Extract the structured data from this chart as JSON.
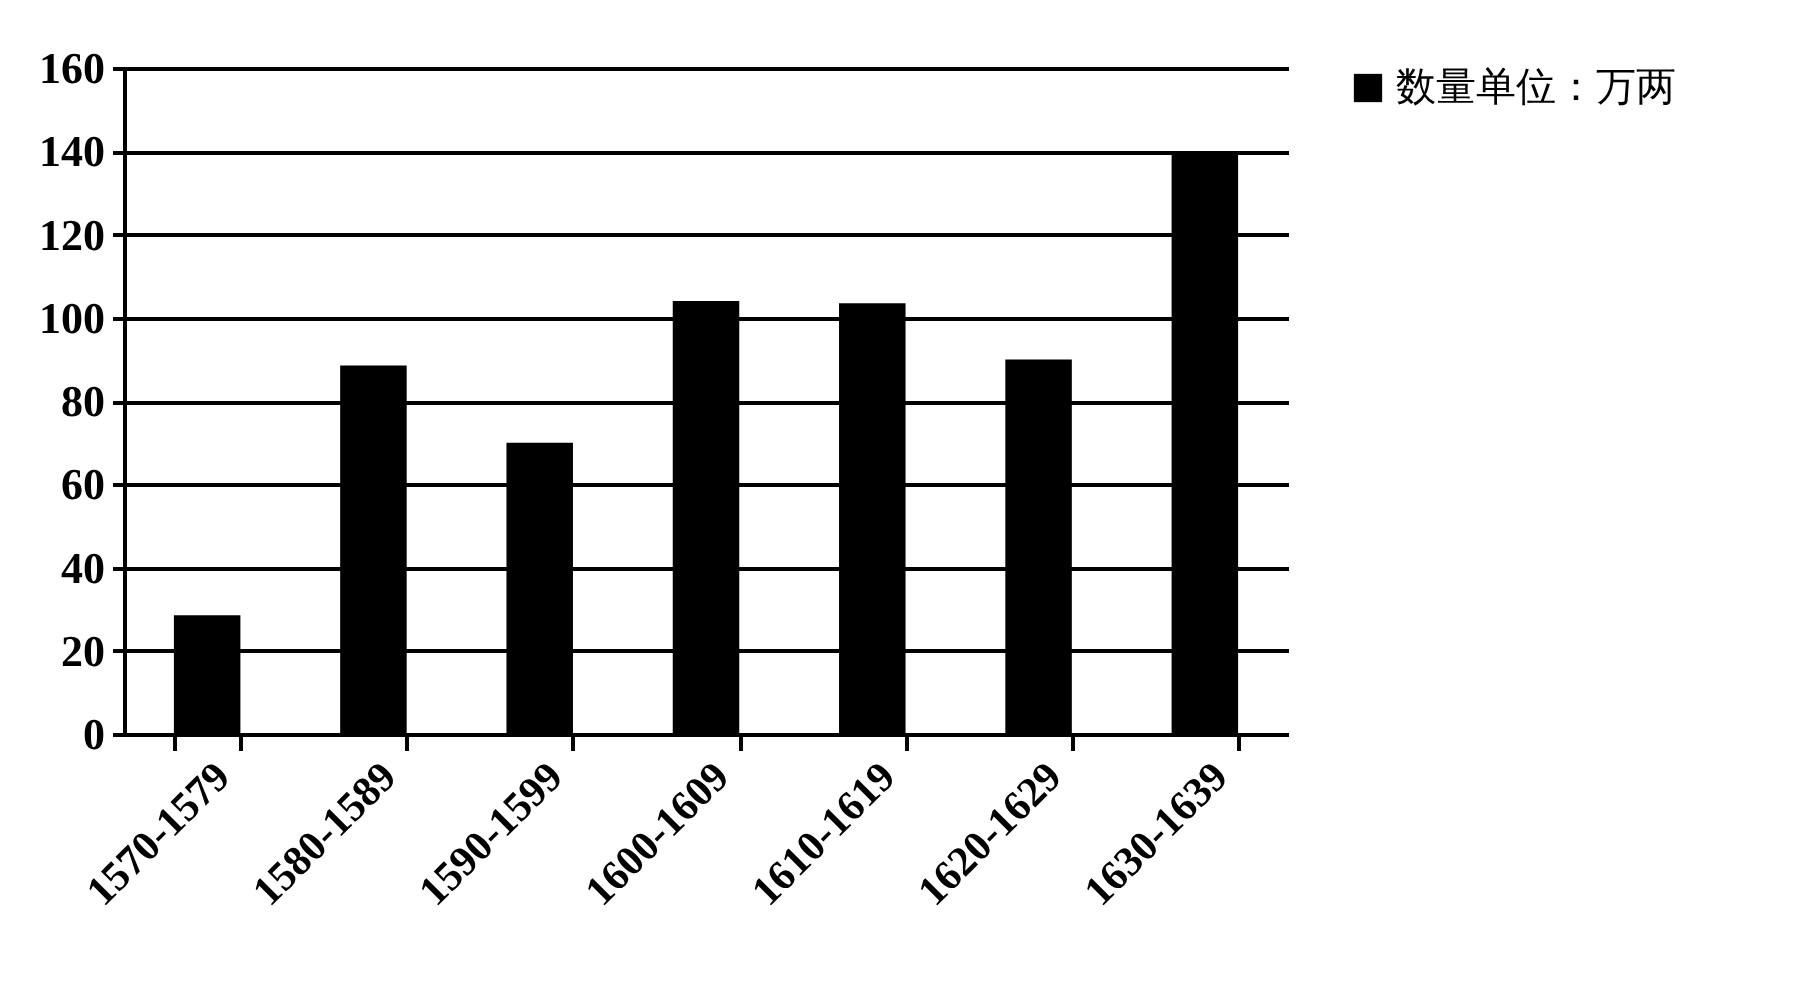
{
  "chart_data": {
    "type": "bar",
    "categories": [
      "1570-1579",
      "1580-1589",
      "1590-1599",
      "1600-1609",
      "1610-1619",
      "1620-1629",
      "1630-1639"
    ],
    "series": [
      {
        "name": "数量单位：万两",
        "color": "#000000",
        "values": [
          28.5,
          88.5,
          70,
          104,
          103.5,
          90,
          140
        ]
      }
    ],
    "ylim": [
      0,
      160
    ],
    "yticks": [
      0,
      20,
      40,
      60,
      80,
      100,
      120,
      140,
      160
    ],
    "grid": "y",
    "legend": "right"
  }
}
